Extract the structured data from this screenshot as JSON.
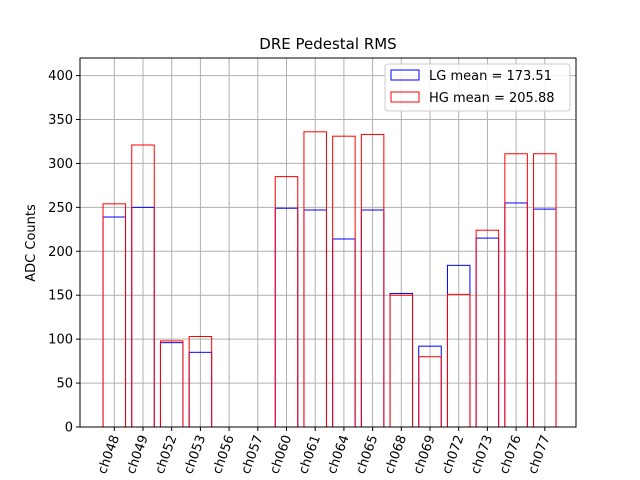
{
  "chart_data": {
    "type": "bar",
    "title": "DRE Pedestal RMS",
    "xlabel": "",
    "ylabel": "ADC Counts",
    "ylim": [
      0,
      420
    ],
    "yticks": [
      0,
      50,
      100,
      150,
      200,
      250,
      300,
      350,
      400
    ],
    "grid": true,
    "legend_position": "top-right",
    "categories": [
      "ch048",
      "ch049",
      "ch052",
      "ch053",
      "ch056",
      "ch057",
      "ch060",
      "ch061",
      "ch064",
      "ch065",
      "ch068",
      "ch069",
      "ch072",
      "ch073",
      "ch076",
      "ch077"
    ],
    "series": [
      {
        "name": "LG",
        "legend_label": "LG mean = 173.51",
        "color": "#0000ff",
        "values": [
          239,
          250,
          96,
          85,
          0,
          0,
          249,
          247,
          214,
          247,
          152,
          92,
          184,
          215,
          255,
          248
        ]
      },
      {
        "name": "HG",
        "legend_label": "HG mean = 205.88",
        "color": "#ff0000",
        "values": [
          254,
          321,
          98,
          103,
          0,
          0,
          285,
          336,
          331,
          333,
          150,
          80,
          151,
          224,
          311,
          311
        ]
      }
    ]
  }
}
